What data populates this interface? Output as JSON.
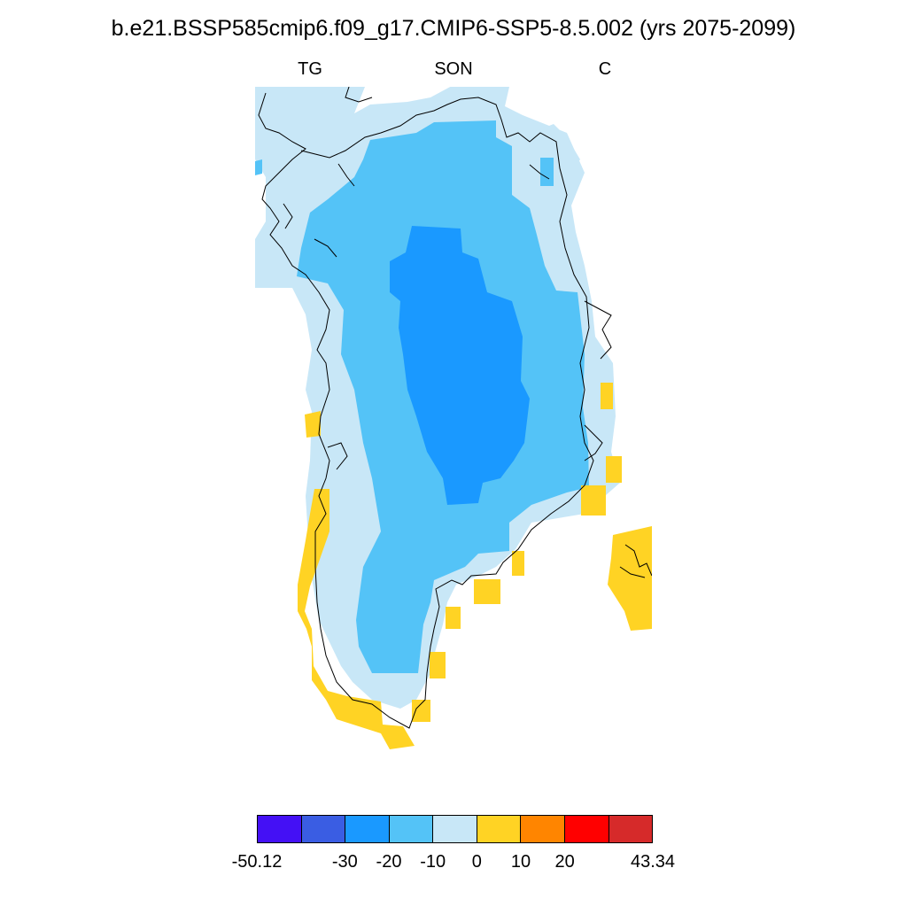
{
  "figure": {
    "title": "b.e21.BSSP585cmip6.f09_g17.CMIP6-SSP5-8.5.002 (yrs 2075-2099)",
    "left_label": "TG",
    "center_label": "SON",
    "right_label": "C"
  },
  "colorbar": {
    "colors": [
      "#4410f5",
      "#3a5de3",
      "#1a99ff",
      "#54c3f7",
      "#c8e7f7",
      "#ffd324",
      "#ff8500",
      "#ff0000",
      "#d62a2a"
    ],
    "labels": [
      {
        "text": "-50.12",
        "edge": 0
      },
      {
        "text": "-30",
        "edge": 2
      },
      {
        "text": "-20",
        "edge": 3
      },
      {
        "text": "-10",
        "edge": 4
      },
      {
        "text": "0",
        "edge": 5
      },
      {
        "text": "10",
        "edge": 6
      },
      {
        "text": "20",
        "edge": 7
      },
      {
        "text": "43.34",
        "edge": 9
      }
    ]
  },
  "map_colors": {
    "outer_band": "#c8e7f7",
    "mid_band": "#54c3f7",
    "core": "#1a99ff",
    "warm_coast": "#ffd324",
    "coastline": "#000000"
  }
}
